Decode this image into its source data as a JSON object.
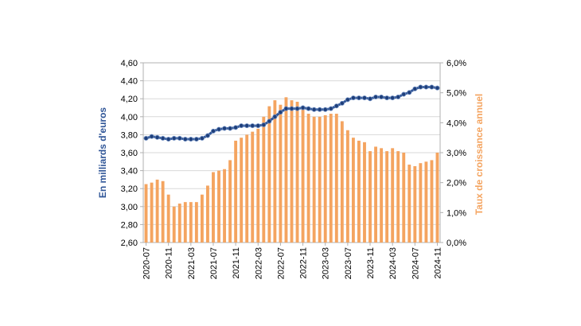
{
  "chart_data": {
    "type": "bar+line",
    "title": "",
    "colors": {
      "line": "#2f5597",
      "line_marker": "#1f3f7a",
      "bar": "#f4a460",
      "left_label": "#2f5597",
      "right_label": "#f4a460",
      "frame": "#b0b0b0"
    },
    "y_left": {
      "label": "En milliards d'euros",
      "min": 2.6,
      "max": 4.6,
      "ticks": [
        "2,60",
        "2,80",
        "3,00",
        "3,20",
        "3,40",
        "3,60",
        "3,80",
        "4,00",
        "4,20",
        "4,40",
        "4,60"
      ]
    },
    "y_right": {
      "label": "Taux de croissance annuel",
      "min": 0,
      "max": 6,
      "ticks": [
        "0,0%",
        "1,0%",
        "2,0%",
        "3,0%",
        "4,0%",
        "5,0%",
        "6,0%"
      ]
    },
    "x_tick_labels": [
      "2020-07",
      "2020-11",
      "2021-03",
      "2021-07",
      "2021-11",
      "2022-03",
      "2022-07",
      "2022-11",
      "2023-03",
      "2023-07",
      "2023-11",
      "2024-03",
      "2024-07",
      "2024-11"
    ],
    "x_tick_every": 4,
    "series": [
      {
        "name": "",
        "axis": "right",
        "type": "bar",
        "values": [
          1.95,
          2.0,
          2.1,
          2.05,
          1.6,
          1.2,
          1.3,
          1.35,
          1.35,
          1.35,
          1.6,
          1.9,
          2.35,
          2.4,
          2.45,
          2.75,
          3.4,
          3.5,
          3.6,
          3.7,
          3.8,
          4.2,
          4.55,
          4.75,
          4.6,
          4.85,
          4.75,
          4.7,
          4.55,
          4.3,
          4.2,
          4.2,
          4.25,
          4.3,
          4.3,
          4.05,
          3.75,
          3.5,
          3.4,
          3.35,
          3.05,
          3.2,
          3.15,
          3.05,
          3.15,
          3.05,
          3.0,
          2.6,
          2.55,
          2.65,
          2.7,
          2.75,
          3.0
        ]
      },
      {
        "name": "",
        "axis": "left",
        "type": "line",
        "values": [
          3.76,
          3.78,
          3.77,
          3.76,
          3.75,
          3.76,
          3.76,
          3.75,
          3.75,
          3.75,
          3.76,
          3.79,
          3.84,
          3.86,
          3.87,
          3.87,
          3.88,
          3.9,
          3.9,
          3.9,
          3.9,
          3.91,
          3.95,
          4.0,
          4.05,
          4.09,
          4.09,
          4.09,
          4.1,
          4.09,
          4.08,
          4.08,
          4.08,
          4.09,
          4.12,
          4.15,
          4.19,
          4.21,
          4.21,
          4.21,
          4.2,
          4.22,
          4.22,
          4.21,
          4.21,
          4.22,
          4.25,
          4.27,
          4.31,
          4.33,
          4.33,
          4.33,
          4.32
        ]
      }
    ]
  }
}
